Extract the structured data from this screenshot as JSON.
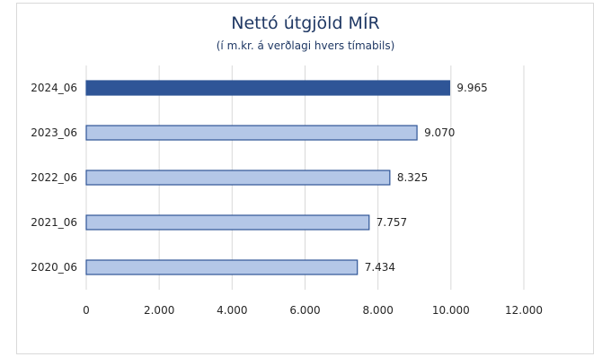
{
  "chart_data": {
    "type": "bar",
    "orientation": "horizontal",
    "title": "Nettó útgjöld MÍR",
    "subtitle": "(í m.kr. á verðlagi hvers tímabils)",
    "categories": [
      "2024_06",
      "2023_06",
      "2022_06",
      "2021_06",
      "2020_06"
    ],
    "values": [
      9965,
      9070,
      8325,
      7757,
      7434
    ],
    "value_labels": [
      "9.965",
      "9.070",
      "8.325",
      "7.757",
      "7.434"
    ],
    "xlim": [
      0,
      12000
    ],
    "xticks": [
      0,
      2000,
      4000,
      6000,
      8000,
      10000,
      12000
    ],
    "xtick_labels": [
      "0",
      "2.000",
      "4.000",
      "6.000",
      "8.000",
      "10.000",
      "12.000"
    ],
    "grid": true,
    "legend": "none",
    "colors": {
      "highlight_bar": "#2f5597",
      "bar": "#b4c7e7",
      "bar_border": "#2f5597",
      "gridline": "#d9d9d9",
      "title": "#1f3864"
    }
  }
}
